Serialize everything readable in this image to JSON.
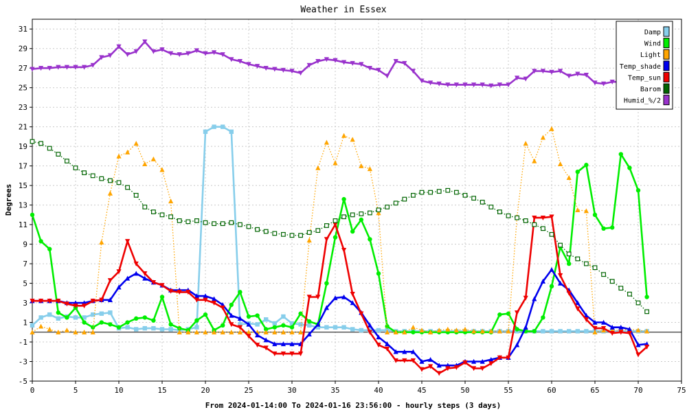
{
  "chart_data": {
    "type": "line",
    "title": "Weather in Essex",
    "xlabel": "From 2024-01-14:00 To 2024-01-16 23:56:00 - hourly steps (3 days)",
    "ylabel": "Degrees",
    "xlim": [
      0,
      75
    ],
    "ylim": [
      -5,
      32
    ],
    "x_ticks": [
      0,
      5,
      10,
      15,
      20,
      25,
      30,
      35,
      40,
      45,
      50,
      55,
      60,
      65,
      70,
      75
    ],
    "y_ticks": [
      -5,
      -3,
      -1,
      1,
      3,
      5,
      7,
      9,
      11,
      13,
      15,
      17,
      19,
      21,
      23,
      25,
      27,
      29,
      31
    ],
    "grid": true,
    "legend_position": "top-right",
    "x": [
      0,
      1,
      2,
      3,
      4,
      5,
      6,
      7,
      8,
      9,
      10,
      11,
      12,
      13,
      14,
      15,
      16,
      17,
      18,
      19,
      20,
      21,
      22,
      23,
      24,
      25,
      26,
      27,
      28,
      29,
      30,
      31,
      32,
      33,
      34,
      35,
      36,
      37,
      38,
      39,
      40,
      41,
      42,
      43,
      44,
      45,
      46,
      47,
      48,
      49,
      50,
      51,
      52,
      53,
      54,
      55,
      56,
      57,
      58,
      59,
      60,
      61,
      62,
      63,
      64,
      65,
      66,
      67,
      68,
      69,
      70,
      71
    ],
    "series": [
      {
        "name": "Damp",
        "color": "#87ceeb",
        "marker": "square",
        "style": "solid",
        "values": [
          0.7,
          1.5,
          1.8,
          1.4,
          1.6,
          1.5,
          1.5,
          1.8,
          1.9,
          2.0,
          0.4,
          0.5,
          0.3,
          0.4,
          0.4,
          0.3,
          0.3,
          0.2,
          0.3,
          0.5,
          20.5,
          21.0,
          21.0,
          20.5,
          0.8,
          0.9,
          0.8,
          1.3,
          0.9,
          1.6,
          0.9,
          0.8,
          0.7,
          0.5,
          0.5,
          0.5,
          0.5,
          0.3,
          0.2,
          0.2,
          0.2,
          0.2,
          0.1,
          0.1,
          0.1,
          0.1,
          0.1,
          0.1,
          0.1,
          0.1,
          0.1,
          0.1,
          0.1,
          0.1,
          0.1,
          0.1,
          0.1,
          0.1,
          0.1,
          0.1,
          0.1,
          0.1,
          0.1,
          0.1,
          0.1,
          0.1,
          0.1,
          0.1,
          0.1,
          0.1,
          0.1,
          0.1
        ]
      },
      {
        "name": "Wind",
        "color": "#00ee00",
        "marker": "circle",
        "style": "solid",
        "values": [
          12.0,
          9.3,
          8.5,
          2.0,
          1.5,
          2.5,
          1.0,
          0.5,
          1.0,
          0.8,
          0.5,
          1.0,
          1.4,
          1.5,
          1.2,
          3.6,
          0.8,
          0.4,
          0.2,
          1.2,
          1.8,
          0.2,
          0.7,
          2.8,
          4.1,
          1.6,
          1.7,
          0.3,
          0.5,
          0.7,
          0.5,
          1.9,
          1.1,
          0.8,
          5.0,
          9.7,
          13.6,
          10.3,
          11.5,
          9.5,
          6.0,
          0.6,
          0.0,
          0.0,
          0.0,
          0.0,
          0.0,
          0.0,
          0.0,
          0.0,
          0.0,
          0.0,
          0.0,
          0.0,
          1.8,
          1.9,
          0.3,
          0.1,
          0.1,
          1.5,
          4.7,
          8.7,
          7.0,
          16.4,
          17.1,
          12.0,
          10.6,
          10.7,
          18.2,
          16.8,
          14.5,
          3.6
        ]
      },
      {
        "name": "Light",
        "color": "#ffa500",
        "marker": "triangle-up",
        "style": "dotted",
        "values": [
          0.0,
          0.6,
          0.3,
          0.0,
          0.2,
          0.0,
          0.0,
          0.0,
          9.2,
          14.2,
          18.0,
          18.4,
          19.3,
          17.2,
          17.7,
          16.6,
          13.4,
          0.0,
          0.0,
          0.0,
          0.0,
          0.0,
          0.0,
          0.0,
          0.0,
          0.0,
          0.0,
          0.0,
          0.0,
          0.0,
          0.0,
          0.0,
          9.4,
          16.8,
          19.4,
          17.3,
          20.1,
          19.7,
          17.0,
          16.7,
          12.2,
          0.0,
          0.0,
          0.0,
          0.5,
          0.2,
          0.0,
          0.2,
          0.3,
          0.2,
          0.3,
          0.1,
          0.1,
          0.1,
          0.1,
          0.1,
          11.8,
          19.3,
          17.5,
          19.9,
          20.8,
          17.2,
          15.8,
          12.5,
          12.4,
          0.0,
          0.2,
          0.2,
          0.2,
          0.3,
          0.2,
          0.1
        ]
      },
      {
        "name": "Temp_shade",
        "color": "#0000ee",
        "marker": "triangle-up",
        "style": "solid",
        "values": [
          3.2,
          3.2,
          3.2,
          3.2,
          3.0,
          3.0,
          3.0,
          3.2,
          3.3,
          3.3,
          4.6,
          5.5,
          6.0,
          5.5,
          5.1,
          4.8,
          4.3,
          4.3,
          4.3,
          3.7,
          3.7,
          3.4,
          2.8,
          1.7,
          1.4,
          0.8,
          -0.3,
          -0.8,
          -1.2,
          -1.2,
          -1.2,
          -1.2,
          -0.2,
          0.8,
          2.5,
          3.5,
          3.6,
          3.0,
          2.0,
          0.7,
          -0.5,
          -1.2,
          -2.0,
          -2.0,
          -2.0,
          -3.0,
          -2.8,
          -3.4,
          -3.4,
          -3.4,
          -3.0,
          -3.0,
          -3.0,
          -2.8,
          -2.6,
          -2.6,
          -1.3,
          0.5,
          3.4,
          5.2,
          6.4,
          5.0,
          4.3,
          3.0,
          1.7,
          1.0,
          1.0,
          0.5,
          0.5,
          0.3,
          -1.3,
          -1.2
        ]
      },
      {
        "name": "Temp_sun",
        "color": "#ee0000",
        "marker": "triangle-down",
        "style": "solid",
        "values": [
          3.2,
          3.2,
          3.2,
          3.2,
          2.9,
          2.7,
          2.7,
          3.2,
          3.3,
          5.3,
          6.2,
          9.3,
          7.0,
          6.0,
          5.1,
          4.8,
          4.2,
          4.1,
          4.1,
          3.3,
          3.3,
          3.0,
          2.5,
          0.8,
          0.5,
          -0.4,
          -1.3,
          -1.6,
          -2.2,
          -2.2,
          -2.2,
          -2.2,
          3.6,
          3.6,
          9.5,
          11.0,
          8.4,
          3.9,
          1.9,
          0.0,
          -1.3,
          -1.7,
          -2.9,
          -2.9,
          -2.9,
          -3.8,
          -3.5,
          -4.2,
          -3.7,
          -3.6,
          -3.1,
          -3.7,
          -3.7,
          -3.2,
          -2.6,
          -2.6,
          2.0,
          3.5,
          11.7,
          11.7,
          11.8,
          5.8,
          4.0,
          2.4,
          1.3,
          0.4,
          0.4,
          -0.1,
          0.0,
          -0.1,
          -2.3,
          -1.5
        ]
      },
      {
        "name": "Barom",
        "color": "#006400",
        "marker": "open-square",
        "style": "dotted",
        "values": [
          19.5,
          19.3,
          18.8,
          18.2,
          17.5,
          16.8,
          16.3,
          16.0,
          15.7,
          15.5,
          15.3,
          14.8,
          14.0,
          12.8,
          12.3,
          12.0,
          11.8,
          11.4,
          11.3,
          11.4,
          11.2,
          11.1,
          11.1,
          11.2,
          11.0,
          10.8,
          10.5,
          10.3,
          10.1,
          10.0,
          9.9,
          9.9,
          10.2,
          10.4,
          10.9,
          11.4,
          11.8,
          12.0,
          12.1,
          12.2,
          12.5,
          12.8,
          13.2,
          13.6,
          14.0,
          14.3,
          14.3,
          14.4,
          14.5,
          14.3,
          14.0,
          13.7,
          13.3,
          12.8,
          12.3,
          11.9,
          11.7,
          11.4,
          11.0,
          10.6,
          10.0,
          8.9,
          8.0,
          7.5,
          7.0,
          6.6,
          5.9,
          5.2,
          4.5,
          3.9,
          3.0,
          2.1
        ]
      },
      {
        "name": "Humid_%/2",
        "color": "#9932cc",
        "marker": "triangle-down",
        "style": "solid",
        "values": [
          26.9,
          27.0,
          27.0,
          27.1,
          27.1,
          27.1,
          27.1,
          27.3,
          28.1,
          28.3,
          29.2,
          28.4,
          28.7,
          29.7,
          28.7,
          28.9,
          28.5,
          28.4,
          28.5,
          28.8,
          28.5,
          28.6,
          28.4,
          27.9,
          27.7,
          27.4,
          27.2,
          27.0,
          26.9,
          26.8,
          26.7,
          26.5,
          27.3,
          27.7,
          27.9,
          27.8,
          27.6,
          27.5,
          27.4,
          27.0,
          26.8,
          26.2,
          27.7,
          27.5,
          26.7,
          25.7,
          25.5,
          25.4,
          25.3,
          25.3,
          25.3,
          25.3,
          25.3,
          25.2,
          25.3,
          25.3,
          26.0,
          25.9,
          26.7,
          26.7,
          26.6,
          26.7,
          26.2,
          26.4,
          26.3,
          25.5,
          25.4,
          25.6,
          25.6,
          25.6,
          25.7,
          25.6
        ]
      }
    ]
  }
}
